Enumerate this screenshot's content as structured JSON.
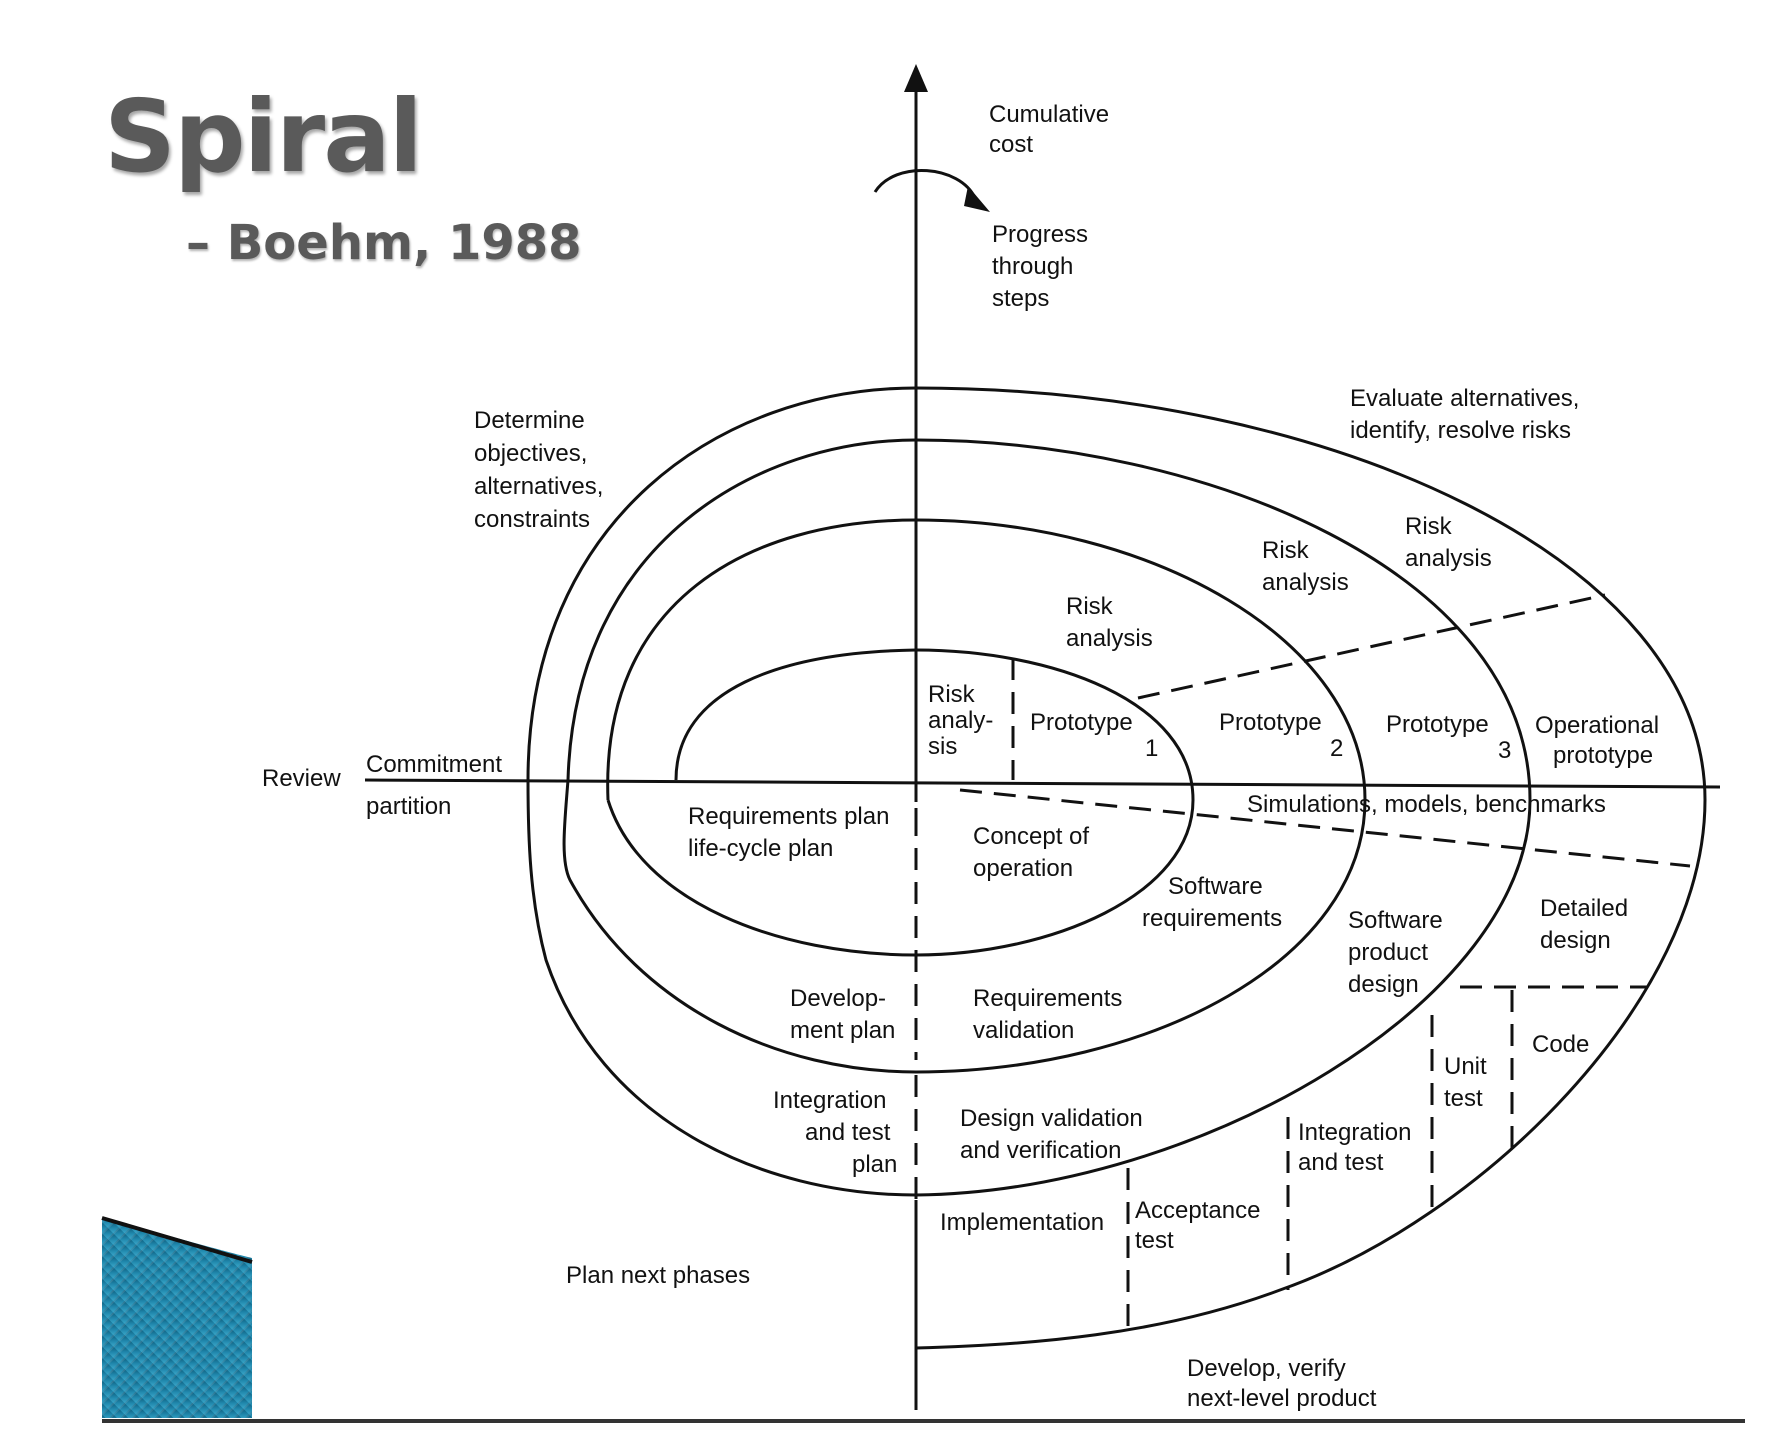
{
  "slide": {
    "title": "Spiral",
    "subtitle": "– Boehm, 1988"
  },
  "labels": {
    "cumulative_cost": [
      "Cumulative",
      "cost"
    ],
    "progress": [
      "Progress",
      "through",
      "steps"
    ],
    "determine_objectives": [
      "Determine",
      "objectives,",
      "alternatives,",
      "constraints"
    ],
    "evaluate_alternatives": [
      "Evaluate alternatives,",
      "identify, resolve risks"
    ],
    "review": "Review",
    "commitment_partition": [
      "Commitment",
      "partition"
    ],
    "risk_analysis_1": [
      "Risk",
      "analy-",
      "sis"
    ],
    "risk_analysis_2": [
      "Risk",
      "analysis"
    ],
    "risk_analysis_3": [
      "Risk",
      "analysis"
    ],
    "risk_analysis_4": [
      "Risk",
      "analysis"
    ],
    "prototype_1": [
      "Prototype",
      "1"
    ],
    "prototype_2": [
      "Prototype",
      "2"
    ],
    "prototype_3": [
      "Prototype",
      "3"
    ],
    "operational_prototype": [
      "Operational",
      "prototype"
    ],
    "simulations": "Simulations, models, benchmarks",
    "requirements_plan": [
      "Requirements plan",
      "life-cycle plan"
    ],
    "concept_of_operation": [
      "Concept of",
      "operation"
    ],
    "software_requirements": [
      "Software",
      "requirements"
    ],
    "software_product_design": [
      "Software",
      "product",
      "design"
    ],
    "detailed_design": [
      "Detailed",
      "design"
    ],
    "development_plan": [
      "Develop-",
      "ment plan"
    ],
    "requirements_validation": [
      "Requirements",
      "validation"
    ],
    "code": "Code",
    "unit_test": [
      "Unit",
      "test"
    ],
    "integration_test_plan": [
      "Integration",
      "and test",
      "plan"
    ],
    "design_validation": [
      "Design validation",
      "and verification"
    ],
    "integration_and_test": [
      "Integration",
      "and test"
    ],
    "implementation": "Implementation",
    "acceptance_test": [
      "Acceptance",
      "test"
    ],
    "plan_next_phases": "Plan next phases",
    "develop_verify": [
      "Develop, verify",
      "next-level product"
    ]
  },
  "colors": {
    "title": "#5a5a5a",
    "ink": "#111111",
    "accent_block": "#1f7fa3"
  }
}
